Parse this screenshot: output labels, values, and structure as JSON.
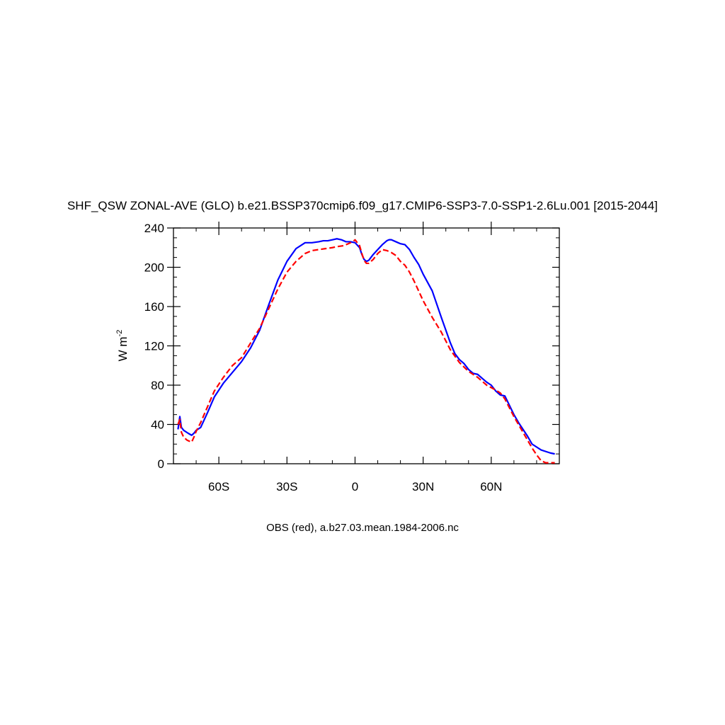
{
  "chart_data": {
    "type": "line",
    "title": "SHF_QSW ZONAL-AVE (GLO) b.e21.BSSP370cmip6.f09_g17.CMIP6-SSP3-7.0-SSP1-2.6Lu.001 [2015-2044]",
    "xlabel": "",
    "ylabel_base": "W m",
    "ylabel_exponent": "-2",
    "caption": "OBS (red), a.b27.03.mean.1984-2006.nc",
    "xlim": [
      -80,
      90
    ],
    "ylim": [
      0,
      240
    ],
    "x_ticks": [
      {
        "value": -60,
        "label": "60S"
      },
      {
        "value": -30,
        "label": "30S"
      },
      {
        "value": 0,
        "label": "0"
      },
      {
        "value": 30,
        "label": "30N"
      },
      {
        "value": 60,
        "label": "60N"
      }
    ],
    "y_ticks": [
      {
        "value": 0,
        "label": "0"
      },
      {
        "value": 40,
        "label": "40"
      },
      {
        "value": 80,
        "label": "80"
      },
      {
        "value": 120,
        "label": "120"
      },
      {
        "value": 160,
        "label": "160"
      },
      {
        "value": 200,
        "label": "200"
      },
      {
        "value": 240,
        "label": "240"
      }
    ],
    "series": [
      {
        "color": "#0000ff",
        "style": "solid",
        "x": [
          -78,
          -77.2,
          -76.5,
          -75.5,
          -73.5,
          -72,
          -71,
          -70,
          -68,
          -65,
          -62,
          -58,
          -54,
          -50,
          -46,
          -42,
          -38,
          -34,
          -30,
          -26,
          -22,
          -19,
          -16,
          -14,
          -12,
          -10,
          -8,
          -6,
          -4,
          -2,
          0,
          2,
          3,
          4,
          5,
          6,
          8,
          10,
          12,
          14,
          15,
          16,
          18,
          20,
          22,
          24,
          26,
          28,
          30,
          34,
          38,
          42,
          44,
          46,
          48,
          50,
          52,
          54,
          56,
          58,
          60,
          62,
          64,
          66,
          70,
          72,
          76,
          78,
          82,
          86,
          88
        ],
        "y": [
          35,
          48,
          37,
          34,
          31,
          29,
          31,
          34,
          37,
          52,
          68,
          82,
          93,
          104,
          118,
          136,
          162,
          187,
          206,
          219,
          225,
          225,
          226,
          227,
          227,
          228,
          229,
          228,
          226,
          226,
          225,
          220,
          213,
          208,
          206,
          207,
          213,
          218,
          223,
          227,
          228,
          228,
          226,
          224,
          223,
          218,
          210,
          203,
          193,
          176,
          149,
          123,
          112,
          106,
          102,
          96,
          92,
          91,
          87,
          83,
          80,
          74,
          70,
          69,
          50,
          42,
          28,
          20,
          14,
          11,
          10
        ]
      },
      {
        "color": "#ff0000",
        "style": "dashed",
        "x": [
          -78,
          -77.2,
          -76.5,
          -75.5,
          -74,
          -73,
          -72,
          -71,
          -70,
          -68,
          -65,
          -62,
          -58,
          -54,
          -50,
          -46,
          -42,
          -38,
          -34,
          -30,
          -26,
          -22,
          -19,
          -16,
          -13,
          -10,
          -8,
          -5,
          -3,
          -1,
          0,
          1,
          2,
          3,
          4,
          5,
          6,
          8,
          10,
          12,
          14,
          16,
          18,
          20,
          22,
          24,
          26,
          28,
          30,
          34,
          38,
          42,
          46,
          50,
          54,
          58,
          62,
          64,
          66,
          70,
          74,
          76,
          78,
          80,
          82,
          84,
          88
        ],
        "y": [
          40,
          45,
          32,
          27,
          24,
          23,
          22,
          27,
          33,
          42,
          58,
          74,
          88,
          100,
          108,
          123,
          138,
          158,
          178,
          195,
          206,
          214,
          217,
          218,
          219,
          220,
          221,
          222,
          224,
          226,
          228,
          225,
          222,
          214,
          207,
          204,
          204,
          208,
          214,
          218,
          217,
          215,
          212,
          206,
          202,
          195,
          186,
          176,
          166,
          149,
          134,
          116,
          103,
          94,
          88,
          80,
          75,
          72,
          66,
          48,
          32,
          24,
          16,
          9,
          3,
          1,
          1
        ]
      }
    ]
  }
}
